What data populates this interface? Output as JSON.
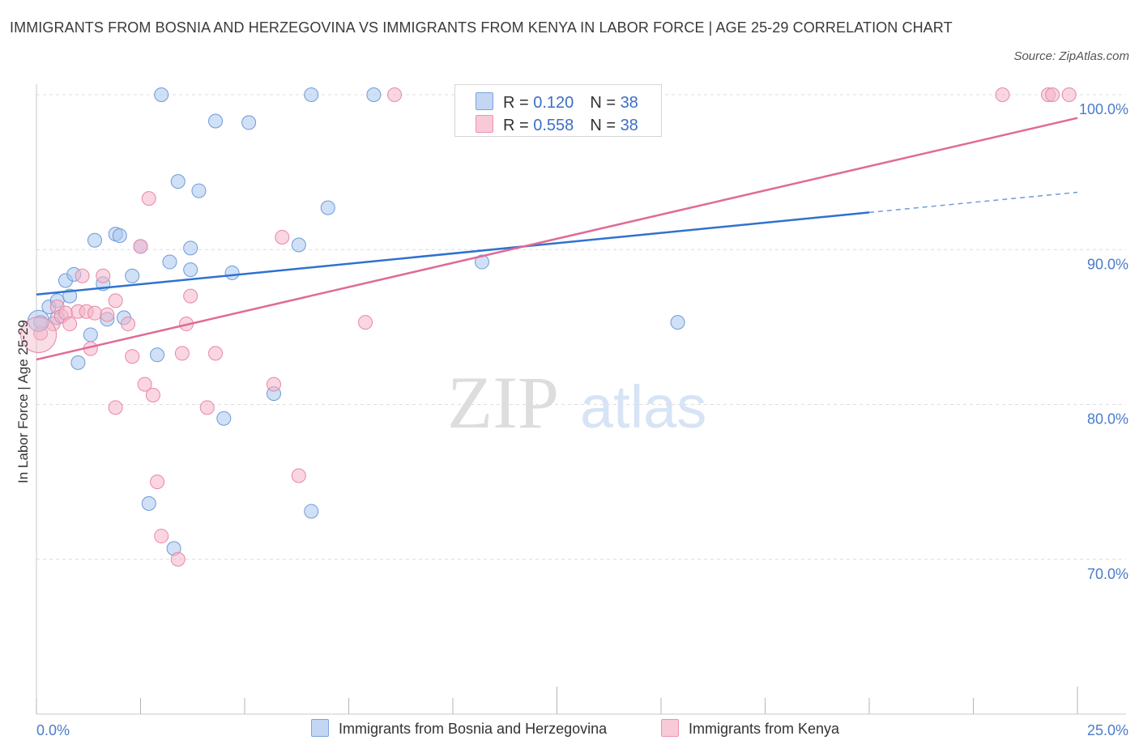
{
  "title": "IMMIGRANTS FROM BOSNIA AND HERZEGOVINA VS IMMIGRANTS FROM KENYA IN LABOR FORCE | AGE 25-29 CORRELATION CHART",
  "source": "Source: ZipAtlas.com",
  "watermark": {
    "zip": "ZIP",
    "atlas": "atlas"
  },
  "legend_top": {
    "rows": [
      {
        "r_label": "R = ",
        "r_value": "0.120",
        "n_label": "N = ",
        "n_value": "38",
        "color": "#a9c6ee"
      },
      {
        "r_label": "R = ",
        "r_value": "0.558",
        "n_label": "N = ",
        "n_value": "38",
        "color": "#f4b5c8"
      }
    ]
  },
  "legend_bottom": [
    {
      "label": "Immigrants from Bosnia and Herzegovina",
      "color": "#a9c6ee"
    },
    {
      "label": "Immigrants from Kenya",
      "color": "#f4b5c8"
    }
  ],
  "chart_data": {
    "type": "scatter",
    "ylabel": "In Labor Force | Age 25-29",
    "xlim": [
      0,
      25
    ],
    "ylim": [
      60,
      100
    ],
    "x_tick_labels": [
      {
        "x": 0,
        "label": "0.0%"
      },
      {
        "x": 25,
        "label": "25.0%"
      }
    ],
    "y_tick_labels": [
      {
        "y": 100,
        "label": "100.0%"
      },
      {
        "y": 90,
        "label": "90.0%"
      },
      {
        "y": 80,
        "label": "80.0%"
      },
      {
        "y": 70,
        "label": "70.0%"
      }
    ],
    "grid": true,
    "series": [
      {
        "name": "Immigrants from Bosnia and Herzegovina",
        "color": "#a9c6ee",
        "stroke": "#6f9ad8",
        "line_color": "#2f72cf",
        "trend": {
          "x0": 0,
          "y0": 87.1,
          "x1": 20,
          "y1": 92.4,
          "dash_to_x": 25,
          "dash_to_y": 93.7
        },
        "points": [
          [
            0.1,
            85.3
          ],
          [
            0.3,
            86.3
          ],
          [
            0.5,
            86.7
          ],
          [
            0.5,
            85.6
          ],
          [
            0.7,
            88.0
          ],
          [
            0.8,
            87.0
          ],
          [
            0.9,
            88.4
          ],
          [
            1.0,
            82.7
          ],
          [
            1.3,
            84.5
          ],
          [
            1.4,
            90.6
          ],
          [
            1.6,
            87.8
          ],
          [
            1.7,
            85.5
          ],
          [
            1.9,
            91.0
          ],
          [
            2.0,
            90.9
          ],
          [
            2.1,
            85.6
          ],
          [
            2.3,
            88.3
          ],
          [
            2.5,
            90.2
          ],
          [
            2.7,
            73.6
          ],
          [
            2.9,
            83.2
          ],
          [
            3.0,
            100.0
          ],
          [
            3.2,
            89.2
          ],
          [
            3.3,
            70.7
          ],
          [
            3.4,
            94.4
          ],
          [
            3.7,
            88.7
          ],
          [
            3.7,
            90.1
          ],
          [
            3.9,
            93.8
          ],
          [
            4.3,
            98.3
          ],
          [
            4.5,
            79.1
          ],
          [
            4.7,
            88.5
          ],
          [
            5.1,
            98.2
          ],
          [
            5.7,
            80.7
          ],
          [
            6.3,
            90.3
          ],
          [
            6.6,
            100.0
          ],
          [
            6.6,
            73.1
          ],
          [
            7.0,
            92.7
          ],
          [
            8.1,
            100.0
          ],
          [
            10.7,
            89.2
          ],
          [
            15.4,
            85.3
          ]
        ]
      },
      {
        "name": "Immigrants from Kenya",
        "color": "#f4b5c8",
        "stroke": "#e888a6",
        "line_color": "#e06a96",
        "trend": {
          "x0": 0,
          "y0": 82.9,
          "x1": 25,
          "y1": 98.5
        },
        "points": [
          [
            0.1,
            84.6
          ],
          [
            0.4,
            85.2
          ],
          [
            0.5,
            86.3
          ],
          [
            0.6,
            85.7
          ],
          [
            0.7,
            85.9
          ],
          [
            0.8,
            85.2
          ],
          [
            1.0,
            86.0
          ],
          [
            1.1,
            88.3
          ],
          [
            1.2,
            86.0
          ],
          [
            1.3,
            83.6
          ],
          [
            1.4,
            85.9
          ],
          [
            1.6,
            88.3
          ],
          [
            1.7,
            85.8
          ],
          [
            1.9,
            86.7
          ],
          [
            1.9,
            79.8
          ],
          [
            2.2,
            85.2
          ],
          [
            2.3,
            83.1
          ],
          [
            2.5,
            90.2
          ],
          [
            2.6,
            81.3
          ],
          [
            2.7,
            93.3
          ],
          [
            2.8,
            80.6
          ],
          [
            2.9,
            75.0
          ],
          [
            3.0,
            71.5
          ],
          [
            3.4,
            70.0
          ],
          [
            3.5,
            83.3
          ],
          [
            3.6,
            85.2
          ],
          [
            3.7,
            87.0
          ],
          [
            4.1,
            79.8
          ],
          [
            4.3,
            83.3
          ],
          [
            5.7,
            81.3
          ],
          [
            5.9,
            90.8
          ],
          [
            6.3,
            75.4
          ],
          [
            7.9,
            85.3
          ],
          [
            8.6,
            100.0
          ],
          [
            23.2,
            100.0
          ],
          [
            24.3,
            100.0
          ],
          [
            24.4,
            100.0
          ],
          [
            24.8,
            100.0
          ]
        ]
      }
    ]
  }
}
